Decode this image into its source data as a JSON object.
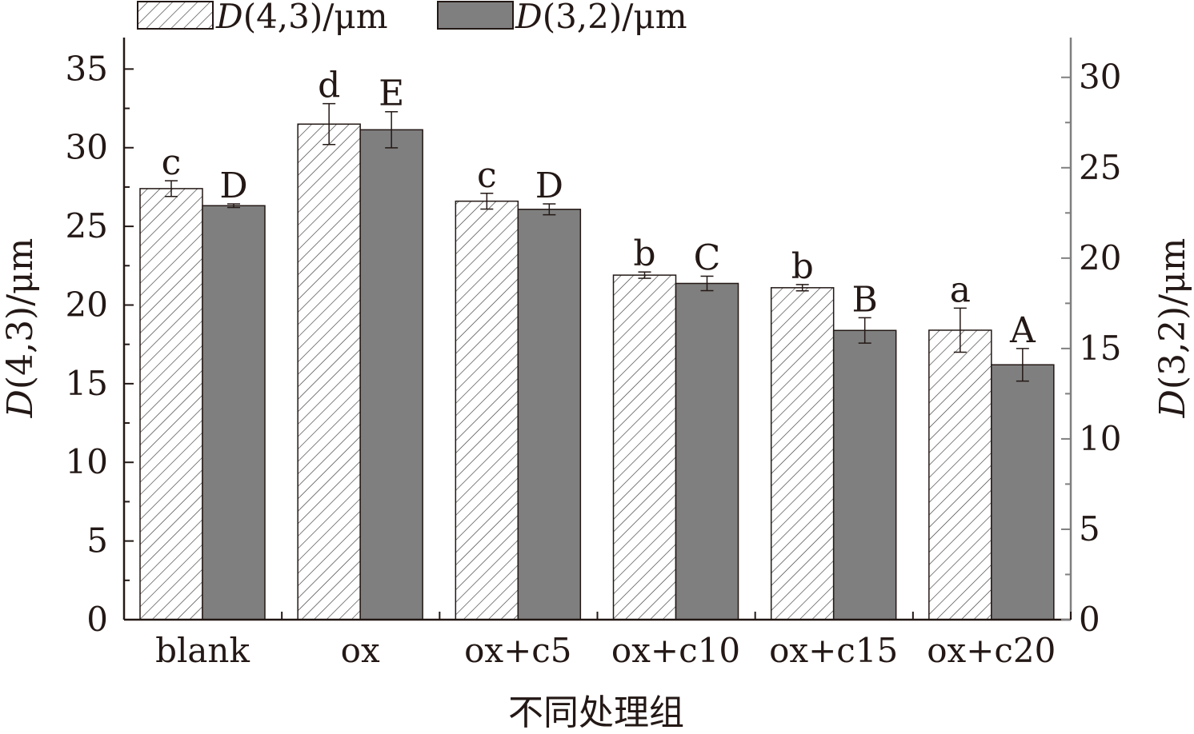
{
  "chart_data": {
    "type": "bar",
    "categories": [
      "blank",
      "ox",
      "ox+c5",
      "ox+c10",
      "ox+c15",
      "ox+c20"
    ],
    "xlabel": "不同处理组",
    "ylabel": "D(4,3)/μm",
    "ylabel_right": "D(3,2)/μm",
    "ylim": [
      0,
      37
    ],
    "ylim_right": [
      0,
      32.2
    ],
    "yticks": [
      0,
      5,
      10,
      15,
      20,
      25,
      30,
      35
    ],
    "yticks_right": [
      0,
      5,
      10,
      15,
      20,
      25,
      30
    ],
    "legend_position": "top-left",
    "grid": false,
    "series": [
      {
        "name": "D(4,3)/μm",
        "legend_italic": "D",
        "legend_rest": "(4,3)/μm",
        "axis": "left",
        "pattern": "hatched",
        "color": "#ffffff",
        "values": [
          27.4,
          31.5,
          26.6,
          21.9,
          21.1,
          18.4
        ],
        "errors": [
          0.5,
          1.3,
          0.5,
          0.2,
          0.2,
          1.4
        ],
        "sig_labels": [
          "c",
          "d",
          "c",
          "b",
          "b",
          "a"
        ]
      },
      {
        "name": "D(3,2)/μm",
        "legend_italic": "D",
        "legend_rest": "(3,2)/μm",
        "axis": "right",
        "pattern": "solid",
        "color": "#7f7f7f",
        "values": [
          22.9,
          27.1,
          22.7,
          18.6,
          16.0,
          14.1
        ],
        "errors": [
          0.1,
          1.0,
          0.3,
          0.4,
          0.7,
          0.9
        ],
        "sig_labels": [
          "D",
          "E",
          "D",
          "C",
          "B",
          "A"
        ]
      }
    ]
  }
}
